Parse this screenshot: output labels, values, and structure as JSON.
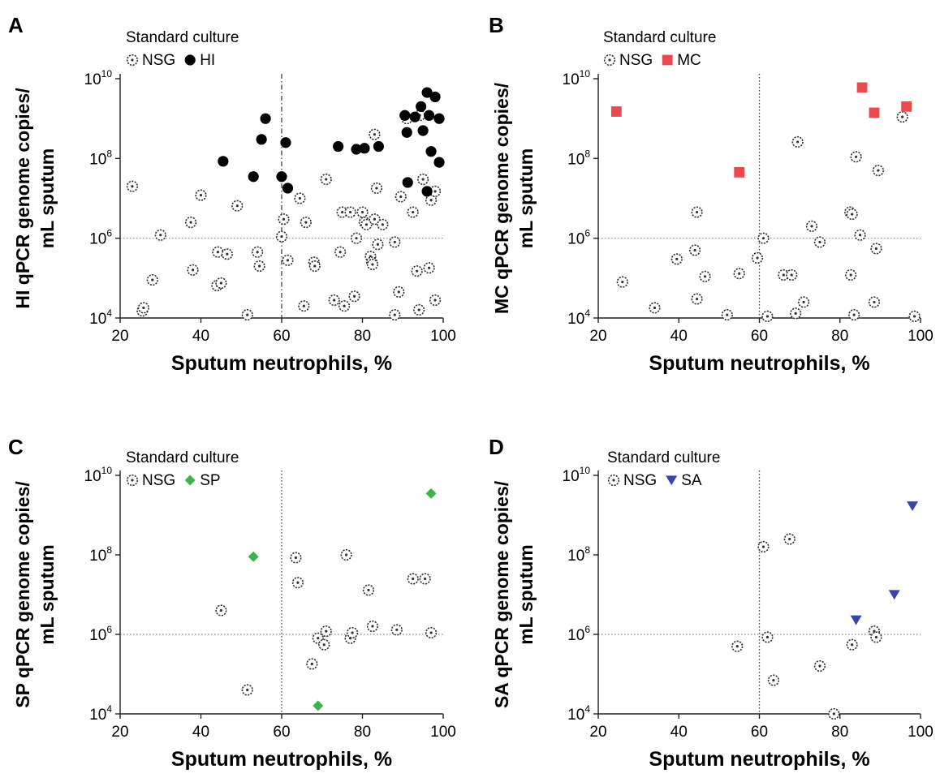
{
  "chart_data": [
    {
      "type": "scatter",
      "panel_label": "A",
      "legend": {
        "title": "Standard culture",
        "items": [
          {
            "label": "NSG",
            "marker": "open-circle-dot"
          },
          {
            "label": "HI",
            "marker": "filled-circle"
          }
        ]
      },
      "xlabel": "Sputum neutrophils, %",
      "ylabel": "HI qPCR genome copies/\nmL sputum",
      "y_scale": "log10",
      "xlim": [
        20,
        100
      ],
      "ylim": [
        10000.0,
        10000000000.0
      ],
      "x_ticks": [
        20,
        40,
        60,
        80,
        100
      ],
      "y_ticks": [
        {
          "base": "10",
          "exp": "4",
          "value": 10000.0
        },
        {
          "base": "10",
          "exp": "6",
          "value": 1000000.0
        },
        {
          "base": "10",
          "exp": "8",
          "value": 100000000.0
        },
        {
          "base": "10",
          "exp": "10",
          "value": 10000000000.0
        }
      ],
      "reference_lines": {
        "x": 60,
        "y": 1000000.0,
        "x_style": "dashdot"
      },
      "series": [
        {
          "name": "NSG",
          "marker": "open-circle-dot",
          "color": "#333333",
          "points": [
            [
              23,
              20000000.0
            ],
            [
              25.5,
              15000.0
            ],
            [
              25.8,
              18000.0
            ],
            [
              28,
              90000.0
            ],
            [
              30,
              1200000.0
            ],
            [
              37.5,
              2500000.0
            ],
            [
              38,
              160000.0
            ],
            [
              40,
              12000000.0
            ],
            [
              44,
              65000.0
            ],
            [
              44.2,
              450000.0
            ],
            [
              45,
              75000.0
            ],
            [
              46.5,
              400000.0
            ],
            [
              49,
              6500000.0
            ],
            [
              51.5,
              12000.0
            ],
            [
              54,
              450000.0
            ],
            [
              54.5,
              200000.0
            ],
            [
              60,
              1100000.0
            ],
            [
              60.5,
              3000000.0
            ],
            [
              61.5,
              280000.0
            ],
            [
              64.5,
              10000000.0
            ],
            [
              65.5,
              20000.0
            ],
            [
              66,
              2500000.0
            ],
            [
              68,
              250000.0
            ],
            [
              68.2,
              200000.0
            ],
            [
              71,
              30000000.0
            ],
            [
              73,
              28000.0
            ],
            [
              74.5,
              450000.0
            ],
            [
              75,
              4500000.0
            ],
            [
              75.5,
              20000.0
            ],
            [
              77,
              4500000.0
            ],
            [
              78,
              35000.0
            ],
            [
              78.5,
              1000000.0
            ],
            [
              80,
              4500000.0
            ],
            [
              80.5,
              2500000.0
            ],
            [
              81,
              2200000.0
            ],
            [
              82,
              350000.0
            ],
            [
              82.3,
              250000.0
            ],
            [
              82.5,
              220000.0
            ],
            [
              83,
              400000000.0
            ],
            [
              83,
              3000000.0
            ],
            [
              83.5,
              18000000.0
            ],
            [
              83.8,
              700000.0
            ],
            [
              85,
              2200000.0
            ],
            [
              88,
              800000.0
            ],
            [
              88,
              12000.0
            ],
            [
              89,
              45000.0
            ],
            [
              89.5,
              11000000.0
            ],
            [
              91,
              1000000000.0
            ],
            [
              92.5,
              4500000.0
            ],
            [
              93.5,
              150000.0
            ],
            [
              94,
              16000.0
            ],
            [
              94.2,
              1200000000.0
            ],
            [
              95,
              30000000.0
            ],
            [
              97,
              9000000.0
            ],
            [
              96.5,
              180000.0
            ],
            [
              98,
              15000000.0
            ],
            [
              98,
              28000.0
            ]
          ]
        },
        {
          "name": "HI",
          "marker": "filled-circle",
          "color": "#000000",
          "points": [
            [
              45.5,
              85000000.0
            ],
            [
              53,
              35000000.0
            ],
            [
              55,
              300000000.0
            ],
            [
              56,
              1000000000.0
            ],
            [
              60,
              35000000.0
            ],
            [
              61,
              250000000.0
            ],
            [
              61.5,
              18000000.0
            ],
            [
              74,
              200000000.0
            ],
            [
              78.5,
              170000000.0
            ],
            [
              80.5,
              180000000.0
            ],
            [
              84,
              200000000.0
            ],
            [
              90.5,
              1200000000.0
            ],
            [
              91,
              450000000.0
            ],
            [
              91.2,
              25000000.0
            ],
            [
              93,
              1100000000.0
            ],
            [
              94.5,
              2000000000.0
            ],
            [
              95,
              500000000.0
            ],
            [
              96,
              4500000000.0
            ],
            [
              96,
              15000000.0
            ],
            [
              96.5,
              1200000000.0
            ],
            [
              97,
              150000000.0
            ],
            [
              98,
              3500000000.0
            ],
            [
              99,
              1000000000.0
            ],
            [
              99,
              80000000.0
            ]
          ]
        }
      ]
    },
    {
      "type": "scatter",
      "panel_label": "B",
      "legend": {
        "title": "Standard culture",
        "items": [
          {
            "label": "NSG",
            "marker": "open-circle-dot"
          },
          {
            "label": "MC",
            "marker": "filled-square"
          }
        ]
      },
      "xlabel": "Sputum neutrophils, %",
      "ylabel": "MC qPCR genome copies/\nmL sputum",
      "y_scale": "log10",
      "xlim": [
        20,
        100
      ],
      "ylim": [
        10000.0,
        10000000000.0
      ],
      "x_ticks": [
        20,
        40,
        60,
        80,
        100
      ],
      "y_ticks": [
        {
          "base": "10",
          "exp": "4",
          "value": 10000.0
        },
        {
          "base": "10",
          "exp": "6",
          "value": 1000000.0
        },
        {
          "base": "10",
          "exp": "8",
          "value": 100000000.0
        },
        {
          "base": "10",
          "exp": "10",
          "value": 10000000000.0
        }
      ],
      "reference_lines": {
        "x": 60,
        "y": 1000000.0,
        "x_style": "dotted"
      },
      "series": [
        {
          "name": "NSG",
          "marker": "open-circle-dot",
          "color": "#333333",
          "points": [
            [
              26,
              80000.0
            ],
            [
              34,
              18000.0
            ],
            [
              39.5,
              300000.0
            ],
            [
              44,
              500000.0
            ],
            [
              44.5,
              4500000.0
            ],
            [
              44.5,
              30000.0
            ],
            [
              46.5,
              110000.0
            ],
            [
              52,
              12000.0
            ],
            [
              55,
              130000.0
            ],
            [
              59.5,
              320000.0
            ],
            [
              61,
              1000000.0
            ],
            [
              62,
              11000.0
            ],
            [
              66,
              120000.0
            ],
            [
              68,
              120000.0
            ],
            [
              69,
              13000.0
            ],
            [
              69.5,
              260000000.0
            ],
            [
              71,
              25000.0
            ],
            [
              73,
              2000000.0
            ],
            [
              75,
              800000.0
            ],
            [
              82.5,
              4500000.0
            ],
            [
              82.7,
              120000.0
            ],
            [
              83,
              4000000.0
            ],
            [
              83.5,
              12000.0
            ],
            [
              84,
              110000000.0
            ],
            [
              85,
              1200000.0
            ],
            [
              88.5,
              25000.0
            ],
            [
              89,
              550000.0
            ],
            [
              89.5,
              50000000.0
            ],
            [
              95.5,
              1100000000.0
            ],
            [
              98.5,
              11000.0
            ]
          ]
        },
        {
          "name": "MC",
          "marker": "filled-square",
          "color": "#e84a4f",
          "points": [
            [
              24.5,
              1500000000.0
            ],
            [
              55,
              45000000.0
            ],
            [
              85.5,
              6000000000.0
            ],
            [
              88.5,
              1400000000.0
            ],
            [
              96.5,
              2000000000.0
            ]
          ]
        }
      ]
    },
    {
      "type": "scatter",
      "panel_label": "C",
      "legend": {
        "title": "Standard culture",
        "items": [
          {
            "label": "NSG",
            "marker": "open-circle-dot"
          },
          {
            "label": "SP",
            "marker": "filled-diamond"
          }
        ]
      },
      "xlabel": "Sputum neutrophils, %",
      "ylabel": "SP qPCR genome copies/\nmL sputum",
      "y_scale": "log10",
      "xlim": [
        20,
        100
      ],
      "ylim": [
        10000.0,
        10000000000.0
      ],
      "x_ticks": [
        20,
        40,
        60,
        80,
        100
      ],
      "y_ticks": [
        {
          "base": "10",
          "exp": "4",
          "value": 10000.0
        },
        {
          "base": "10",
          "exp": "6",
          "value": 1000000.0
        },
        {
          "base": "10",
          "exp": "8",
          "value": 100000000.0
        },
        {
          "base": "10",
          "exp": "10",
          "value": 10000000000.0
        }
      ],
      "reference_lines": {
        "x": 60,
        "y": 1000000.0,
        "x_style": "dotted"
      },
      "series": [
        {
          "name": "NSG",
          "marker": "open-circle-dot",
          "color": "#333333",
          "points": [
            [
              45,
              4000000.0
            ],
            [
              51.5,
              40000.0
            ],
            [
              63.5,
              85000000.0
            ],
            [
              64,
              20000000.0
            ],
            [
              67.5,
              180000.0
            ],
            [
              69,
              800000.0
            ],
            [
              70.5,
              550000.0
            ],
            [
              71,
              1200000.0
            ],
            [
              77,
              800000.0
            ],
            [
              77.5,
              1100000.0
            ],
            [
              81.5,
              13000000.0
            ],
            [
              82.5,
              1600000.0
            ],
            [
              88.5,
              1300000.0
            ],
            [
              92.5,
              25000000.0
            ],
            [
              95.5,
              25000000.0
            ],
            [
              97,
              1100000.0
            ],
            [
              76,
              100000000.0
            ]
          ]
        },
        {
          "name": "SP",
          "marker": "filled-diamond",
          "color": "#3cb44b",
          "points": [
            [
              53,
              90000000.0
            ],
            [
              69,
              16000.0
            ],
            [
              97,
              3500000000.0
            ]
          ]
        }
      ]
    },
    {
      "type": "scatter",
      "panel_label": "D",
      "legend": {
        "title": "Standard culture",
        "items": [
          {
            "label": "NSG",
            "marker": "open-circle-dot"
          },
          {
            "label": "SA",
            "marker": "filled-triangle-down"
          }
        ]
      },
      "xlabel": "Sputum neutrophils, %",
      "ylabel": "SA qPCR genome copies/\nmL sputum",
      "y_scale": "log10",
      "xlim": [
        20,
        100
      ],
      "ylim": [
        10000.0,
        10000000000.0
      ],
      "x_ticks": [
        20,
        40,
        60,
        80,
        100
      ],
      "y_ticks": [
        {
          "base": "10",
          "exp": "4",
          "value": 10000.0
        },
        {
          "base": "10",
          "exp": "6",
          "value": 1000000.0
        },
        {
          "base": "10",
          "exp": "8",
          "value": 100000000.0
        },
        {
          "base": "10",
          "exp": "10",
          "value": 10000000000.0
        }
      ],
      "reference_lines": {
        "x": 60,
        "y": 1000000.0,
        "x_style": "dotted"
      },
      "series": [
        {
          "name": "NSG",
          "marker": "open-circle-dot",
          "color": "#333333",
          "points": [
            [
              54.5,
              500000.0
            ],
            [
              61,
              160000000.0
            ],
            [
              62,
              850000.0
            ],
            [
              63.5,
              70000.0
            ],
            [
              67.5,
              250000000.0
            ],
            [
              75,
              160000.0
            ],
            [
              78.5,
              10000.0
            ],
            [
              83,
              550000.0
            ],
            [
              88.5,
              1200000.0
            ],
            [
              89,
              850000.0
            ]
          ]
        },
        {
          "name": "SA",
          "marker": "filled-triangle-down",
          "color": "#3946a8",
          "points": [
            [
              84,
              2300000.0
            ],
            [
              93.5,
              10000000.0
            ],
            [
              98,
              1700000000.0
            ]
          ]
        }
      ]
    }
  ]
}
